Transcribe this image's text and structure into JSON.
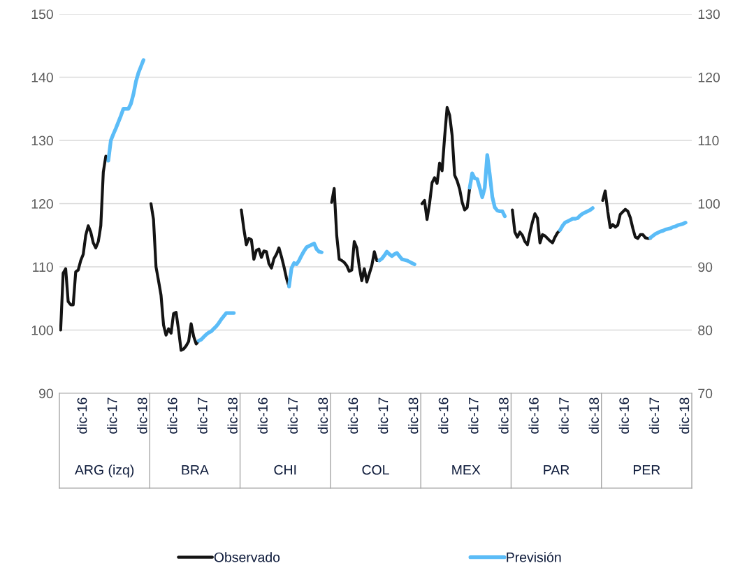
{
  "chart_data": {
    "type": "line",
    "categories": [
      null,
      null,
      null,
      null,
      null,
      null,
      null,
      null,
      null,
      "dic-16",
      null,
      null,
      null,
      null,
      null,
      null,
      null,
      null,
      null,
      null,
      null,
      "dic-17",
      null,
      null,
      null,
      null,
      null,
      null,
      null,
      null,
      null,
      null,
      null,
      "dic-18",
      null,
      null,
      null,
      null,
      null,
      null,
      null,
      null,
      null,
      null,
      null,
      "dic-16",
      null,
      null,
      null,
      null,
      null,
      null,
      null,
      null,
      null,
      null,
      null,
      "dic-17",
      null,
      null,
      null,
      null,
      null,
      null,
      null,
      null,
      null,
      null,
      null,
      "dic-18",
      null,
      null,
      null,
      null,
      null,
      null,
      null,
      null,
      null,
      null,
      null,
      "dic-16",
      null,
      null,
      null,
      null,
      null,
      null,
      null,
      null,
      null,
      null,
      null,
      "dic-17",
      null,
      null,
      null,
      null,
      null,
      null,
      null,
      null,
      null,
      null,
      null,
      "dic-18",
      null,
      null,
      null,
      null,
      null,
      null,
      null,
      null,
      null,
      null,
      null,
      "dic-16",
      null,
      null,
      null,
      null,
      null,
      null,
      null,
      null,
      null,
      null,
      null,
      "dic-17",
      null,
      null,
      null,
      null,
      null,
      null,
      null,
      null,
      null,
      null,
      null,
      "dic-18",
      null,
      null,
      null,
      null,
      null,
      null,
      null,
      null,
      null,
      null,
      null,
      "dic-16",
      null,
      null,
      null,
      null,
      null,
      null,
      null,
      null,
      null,
      null,
      null,
      "dic-17",
      null,
      null,
      null,
      null,
      null,
      null,
      null,
      null,
      null,
      null,
      null,
      "dic-18",
      null,
      null,
      null,
      null,
      null,
      null,
      null,
      null,
      null,
      null,
      null,
      "dic-16",
      null,
      null,
      null,
      null,
      null,
      null,
      null,
      null,
      null,
      null,
      null,
      "dic-17",
      null,
      null,
      null,
      null,
      null,
      null,
      null,
      null,
      null,
      null,
      null,
      "dic-18",
      null,
      null,
      null,
      null,
      null,
      null,
      null,
      null,
      null,
      null,
      null,
      "dic-16",
      null,
      null,
      null,
      null,
      null,
      null,
      null,
      null,
      null,
      null,
      null,
      "dic-17",
      null,
      null,
      null,
      null,
      null,
      null,
      null,
      null,
      null,
      null,
      null,
      "dic-18",
      null,
      null
    ],
    "annotations": [
      "ARG (izq)",
      "BRA",
      "CHI",
      "COL",
      "MEX",
      "PAR",
      "PER"
    ],
    "ylim": [
      90,
      150
    ],
    "yticks": [
      90,
      100,
      110,
      120,
      130,
      140,
      150
    ],
    "y2lim": [
      70,
      130
    ],
    "y2ticks": [
      70,
      80,
      90,
      100,
      110,
      120,
      130
    ],
    "grid": "y",
    "legend": "bottom",
    "series": [
      {
        "name": "Observado",
        "color": "#141414",
        "values": [
          100,
          109,
          109.7,
          104.5,
          104,
          104,
          109.2,
          109.5,
          111,
          112,
          115,
          116.5,
          115.5,
          113.8,
          113,
          114,
          116.5,
          125,
          127.5,
          126.8,
          null,
          null,
          null,
          null,
          null,
          null,
          null,
          null,
          null,
          null,
          null,
          null,
          null,
          null,
          null,
          null,
          null,
          null,
          null,
          null,
          null,
          null,
          null,
          null,
          null,
          null,
          null,
          null,
          null,
          null,
          null,
          null,
          null,
          null,
          null,
          null,
          null,
          null,
          null,
          null,
          null,
          null,
          null,
          null,
          null,
          null,
          null,
          null,
          null,
          null,
          null,
          null,
          null,
          null,
          null,
          null,
          null,
          null,
          null,
          null,
          null,
          null,
          null,
          null,
          null,
          null,
          null,
          null,
          null,
          null,
          null,
          null,
          null,
          null,
          null,
          null,
          null,
          null,
          null,
          null,
          null,
          null,
          null,
          null,
          null,
          null,
          null,
          null,
          null,
          null,
          null,
          null,
          null,
          null,
          null,
          null,
          null,
          null,
          null,
          null,
          null,
          null,
          null,
          null,
          null,
          null,
          null,
          null,
          null,
          null,
          null,
          null,
          null,
          null,
          null,
          null,
          null,
          null,
          null,
          null,
          null,
          null,
          null,
          null,
          null,
          null,
          null,
          null,
          null,
          null,
          null,
          null,
          null,
          null,
          null,
          null,
          null,
          null,
          null,
          null,
          null,
          null,
          null,
          null,
          null,
          null,
          null,
          null,
          null,
          null,
          null,
          null,
          null,
          null,
          null,
          null,
          null,
          null,
          null,
          null,
          null,
          null,
          null,
          null,
          null,
          null,
          null,
          null,
          null,
          null,
          null,
          null,
          null,
          null,
          null,
          null,
          null,
          null,
          null,
          null,
          null,
          null,
          null,
          null,
          null,
          null,
          null,
          null,
          null,
          null,
          null,
          null,
          null,
          null,
          null,
          null,
          null,
          null,
          null,
          null,
          null,
          null,
          null,
          null,
          null,
          null,
          null,
          null,
          null,
          null,
          null,
          null,
          null,
          null,
          null,
          null,
          null,
          null,
          null,
          null,
          null,
          null,
          null,
          null,
          null,
          null,
          null,
          null,
          null,
          null,
          null,
          null
        ]
      },
      {
        "name": "Previsión",
        "color": "#5bbcf7",
        "values": [
          null,
          null,
          null,
          null,
          null,
          null,
          null,
          null,
          null,
          null,
          null,
          null,
          null,
          null,
          null,
          null,
          null,
          null,
          null,
          126.8,
          130,
          131,
          131.9,
          132.9,
          133.9,
          135,
          135,
          135,
          135.8,
          137.3,
          139.3,
          140.7,
          141.7,
          142.7,
          null,
          null,
          null,
          null,
          null,
          null,
          null,
          null,
          null,
          null,
          null,
          null,
          null,
          null,
          null,
          null,
          null,
          null,
          null,
          null,
          null,
          null,
          null,
          null,
          null,
          null,
          null,
          null,
          null,
          null,
          null,
          null,
          null,
          null,
          null,
          null,
          null,
          null,
          null,
          null,
          null,
          null,
          null,
          null,
          null,
          null,
          null,
          null,
          null,
          null,
          null,
          null,
          null,
          null,
          null,
          null,
          null,
          null,
          null,
          null,
          null,
          null,
          null,
          null,
          null,
          null,
          null,
          null,
          null,
          null,
          null,
          null,
          null,
          null,
          null,
          null,
          null,
          null,
          null,
          null,
          null,
          null,
          null,
          null,
          null,
          null,
          null,
          null,
          null,
          null,
          null,
          null,
          null,
          null,
          null,
          null,
          null,
          null,
          null,
          null,
          null,
          null,
          null,
          null,
          null,
          null,
          null,
          null,
          null,
          null,
          null,
          null,
          null,
          null,
          null,
          null,
          null,
          null,
          null,
          null,
          null,
          null,
          null,
          null,
          null,
          null,
          null,
          null,
          null,
          null,
          null,
          null,
          null,
          null,
          null,
          null,
          null,
          null,
          null,
          null,
          null,
          null,
          null,
          null,
          null,
          null,
          null,
          null,
          null,
          null,
          null,
          null,
          null,
          null,
          null,
          null,
          null,
          null,
          null,
          null,
          null,
          null,
          null,
          null,
          null,
          null,
          null,
          null,
          null,
          null,
          null,
          null,
          null,
          null,
          null,
          null,
          null,
          null,
          null,
          null,
          null,
          null,
          null,
          null,
          null,
          null,
          null,
          null,
          null,
          null,
          null,
          null,
          null,
          null,
          null,
          null,
          null,
          null,
          null,
          null,
          null,
          null,
          null,
          null,
          null,
          null,
          null,
          null,
          null,
          null,
          null,
          null,
          null,
          null,
          null,
          null,
          null,
          null
        ]
      },
      {
        "color": "#141414",
        "axis": "y2",
        "values": [
          null,
          null,
          null,
          null,
          null,
          null,
          null,
          null,
          null,
          null,
          null,
          null,
          null,
          null,
          null,
          null,
          null,
          null,
          null,
          null,
          null,
          null,
          null,
          null,
          null,
          null,
          null,
          null,
          null,
          null,
          null,
          null,
          null,
          null,
          null,
          null,
          100,
          97.5,
          90,
          87.8,
          85.5,
          80.8,
          79.2,
          80.2,
          79.5,
          82.6,
          82.8,
          80,
          76.8,
          77,
          77.5,
          78.2,
          81,
          79,
          77.8,
          78.3,
          null,
          null,
          null,
          null,
          null,
          null,
          null,
          null,
          null,
          null,
          null,
          null,
          null,
          null,
          null,
          null,
          99,
          96,
          93.5,
          94.5,
          94.3,
          91.2,
          92.6,
          92.8,
          91.5,
          92.5,
          92.4,
          90.5,
          89.8,
          91.3,
          92,
          93,
          91.6,
          90,
          88.2,
          86.9,
          null,
          null,
          null,
          null,
          null,
          null,
          null,
          null,
          null,
          null,
          null,
          null,
          null,
          null,
          null,
          null,
          100.2,
          102.4,
          95,
          91.2,
          91,
          90.7,
          90.2,
          89.3,
          89.5,
          94,
          93,
          90,
          87.8,
          89.7,
          87.6,
          88.9,
          90.2,
          92.4,
          91,
          91,
          null,
          null,
          null,
          null,
          null,
          null,
          null,
          null,
          null,
          null,
          null,
          null,
          null,
          null,
          null,
          null,
          100,
          100.5,
          97.5,
          100,
          103.3,
          104.1,
          103.2,
          106.4,
          105.2,
          110.5,
          115.2,
          114,
          110.8,
          104.5,
          103.6,
          102.3,
          100.2,
          99,
          99.4,
          102.5,
          null,
          null,
          null,
          null,
          null,
          null,
          null,
          null,
          null,
          null,
          null,
          null,
          null,
          null,
          null,
          null,
          99,
          95.5,
          94.7,
          95.5,
          95,
          94,
          93.5,
          95.4,
          97.1,
          98.4,
          97.7,
          93.8,
          95.1,
          94.9,
          94.5,
          94.1,
          93.8,
          94.7,
          95.4,
          95.8,
          null,
          null,
          null,
          null,
          null,
          null,
          null,
          null,
          null,
          null,
          null,
          null,
          null,
          null,
          null,
          null,
          100.5,
          102,
          98.8,
          96.2,
          96.7,
          96.3,
          96.6,
          98.3,
          98.7,
          99.1,
          98.8,
          97.8,
          96.1,
          94.7,
          94.5,
          95.1,
          95.1,
          94.6,
          94.5,
          94.5,
          null,
          null,
          null,
          null,
          null,
          null,
          null,
          null,
          null,
          null,
          null,
          null,
          null,
          null,
          null,
          null
        ]
      },
      {
        "color": "#5bbcf7",
        "axis": "y2",
        "values": [
          null,
          null,
          null,
          null,
          null,
          null,
          null,
          null,
          null,
          null,
          null,
          null,
          null,
          null,
          null,
          null,
          null,
          null,
          null,
          null,
          null,
          null,
          null,
          null,
          null,
          null,
          null,
          null,
          null,
          null,
          null,
          null,
          null,
          null,
          null,
          null,
          null,
          null,
          null,
          null,
          null,
          null,
          null,
          null,
          null,
          null,
          null,
          null,
          null,
          null,
          null,
          null,
          null,
          null,
          null,
          78.3,
          78.5,
          78.9,
          79.3,
          79.6,
          79.8,
          80.2,
          80.6,
          81.1,
          81.7,
          82.2,
          82.7,
          82.7,
          82.7,
          82.7,
          null,
          null,
          null,
          null,
          null,
          null,
          null,
          null,
          null,
          null,
          null,
          null,
          null,
          null,
          null,
          null,
          null,
          null,
          null,
          null,
          null,
          86.9,
          89.8,
          90.6,
          90.4,
          91,
          91.8,
          92.5,
          93.1,
          93.3,
          93.5,
          93.7,
          92.8,
          92.4,
          92.3,
          null,
          null,
          null,
          null,
          null,
          null,
          null,
          null,
          null,
          null,
          null,
          null,
          null,
          null,
          null,
          null,
          null,
          null,
          null,
          null,
          null,
          null,
          91,
          91.3,
          91.8,
          92.4,
          92,
          91.7,
          92,
          92.2,
          91.7,
          91.2,
          91.1,
          91,
          90.8,
          90.6,
          90.4,
          null,
          null,
          null,
          null,
          null,
          null,
          null,
          null,
          null,
          null,
          null,
          null,
          null,
          null,
          null,
          null,
          null,
          null,
          null,
          null,
          null,
          102.5,
          104.8,
          104,
          103.9,
          102.5,
          101,
          102.5,
          107.7,
          104.6,
          101.1,
          99.4,
          98.9,
          98.8,
          98.8,
          98,
          null,
          null,
          null,
          null,
          null,
          null,
          null,
          null,
          null,
          null,
          null,
          null,
          null,
          null,
          null,
          null,
          null,
          null,
          null,
          null,
          null,
          95.8,
          96.5,
          97,
          97.2,
          97.4,
          97.6,
          97.6,
          97.7,
          98.1,
          98.4,
          98.6,
          98.8,
          99,
          99.3,
          null,
          null,
          null,
          null,
          null,
          null,
          null,
          null,
          null,
          null,
          null,
          null,
          null,
          null,
          null,
          null,
          null,
          null,
          null,
          null,
          null,
          null,
          94.6,
          94.9,
          95.2,
          95.4,
          95.6,
          95.7,
          95.9,
          96,
          96.1,
          96.3,
          96.4,
          96.6,
          96.7,
          96.8,
          97,
          null,
          null
        ]
      }
    ]
  }
}
